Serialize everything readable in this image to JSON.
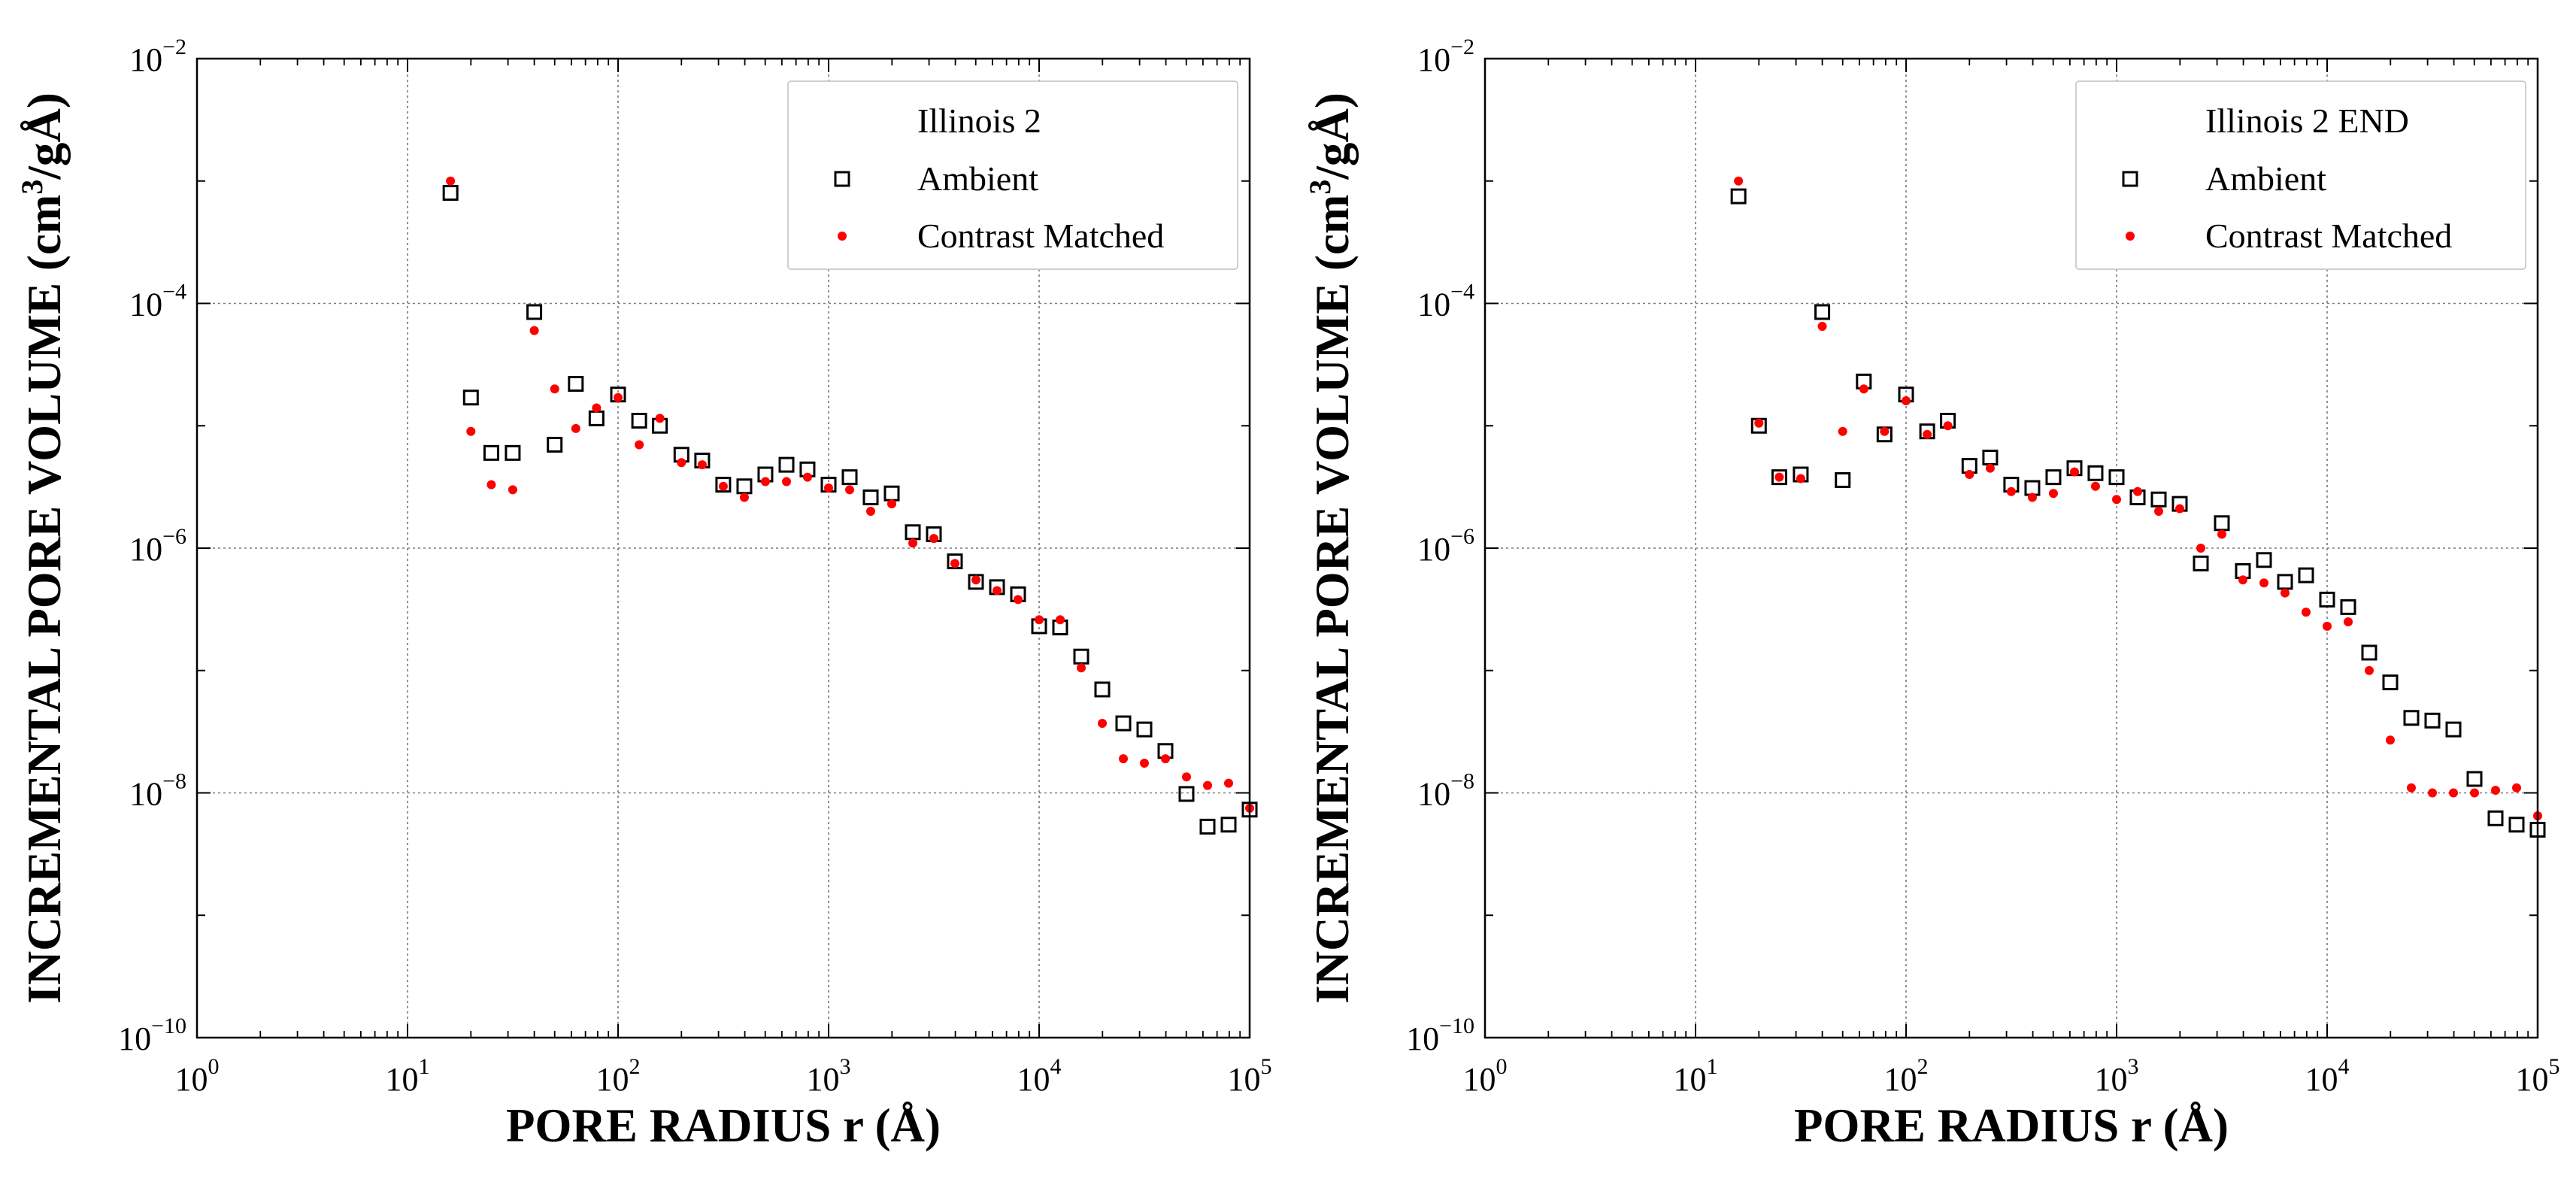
{
  "chart_data": [
    {
      "type": "scatter",
      "title": "Illinois 2",
      "xlabel": "PORE RADIUS r (Å)",
      "ylabel": "INCREMENTAL PORE VOLUME (cm³/gÅ)",
      "ylabel_parts": {
        "main": "INCREMENTAL PORE VOLUME (cm",
        "sup": "3",
        "tail": "/gÅ)"
      },
      "x_scale": "log",
      "y_scale": "log",
      "xlim": [
        1,
        100000
      ],
      "ylim": [
        1e-10,
        0.01
      ],
      "grid": true,
      "legend_position": "top-right",
      "x_ticks": [
        {
          "base": "10",
          "exp": "0"
        },
        {
          "base": "10",
          "exp": "1"
        },
        {
          "base": "10",
          "exp": "2"
        },
        {
          "base": "10",
          "exp": "3"
        },
        {
          "base": "10",
          "exp": "4"
        },
        {
          "base": "10",
          "exp": "5"
        }
      ],
      "y_ticks": [
        {
          "base": "10",
          "exp": "−10"
        },
        {
          "base": "10",
          "exp": "−8"
        },
        {
          "base": "10",
          "exp": "−6"
        },
        {
          "base": "10",
          "exp": "−4"
        },
        {
          "base": "10",
          "exp": "−2"
        }
      ],
      "series": [
        {
          "name": "Ambient",
          "marker": "open-square",
          "color": "#000000",
          "x": [
            16,
            20,
            25,
            31.6,
            40,
            50,
            63,
            79,
            100,
            126,
            158,
            200,
            251,
            316,
            398,
            501,
            631,
            794,
            1000,
            1259,
            1585,
            1995,
            2512,
            3162,
            3981,
            5012,
            6310,
            7943,
            10000,
            12589,
            15849,
            19953,
            25119,
            31623,
            39811,
            50119,
            63096,
            79433,
            100000
          ],
          "y": [
            0.0008,
            1.7e-05,
            6e-06,
            6e-06,
            8.5e-05,
            7e-06,
            2.2e-05,
            1.15e-05,
            1.8e-05,
            1.1e-05,
            1e-05,
            5.8e-06,
            5.2e-06,
            3.3e-06,
            3.2e-06,
            4e-06,
            4.8e-06,
            4.4e-06,
            3.3e-06,
            3.8e-06,
            2.6e-06,
            2.8e-06,
            1.35e-06,
            1.3e-06,
            7.8e-07,
            5.3e-07,
            4.8e-07,
            4.2e-07,
            2.3e-07,
            2.25e-07,
            1.3e-07,
            7e-08,
            3.7e-08,
            3.3e-08,
            2.2e-08,
            9.8e-09,
            5.3e-09,
            5.5e-09,
            7.3e-09
          ]
        },
        {
          "name": "Contrast Matched",
          "marker": "red-dot",
          "color": "#ff0000",
          "x": [
            16,
            20,
            25,
            31.6,
            40,
            50,
            63,
            79,
            100,
            126,
            158,
            200,
            251,
            316,
            398,
            501,
            631,
            794,
            1000,
            1259,
            1585,
            1995,
            2512,
            3162,
            3981,
            5012,
            6310,
            7943,
            10000,
            12589,
            15849,
            19953,
            25119,
            31623,
            39811,
            50119,
            63096,
            79433,
            100000
          ],
          "y": [
            0.001,
            9e-06,
            3.3e-06,
            3e-06,
            6e-05,
            2e-05,
            9.5e-06,
            1.4e-05,
            1.7e-05,
            7e-06,
            1.15e-05,
            5e-06,
            4.8e-06,
            3.2e-06,
            2.6e-06,
            3.5e-06,
            3.5e-06,
            3.8e-06,
            3.1e-06,
            3e-06,
            2e-06,
            2.3e-06,
            1.1e-06,
            1.2e-06,
            7.5e-07,
            5.5e-07,
            4.5e-07,
            3.8e-07,
            2.6e-07,
            2.6e-07,
            1.05e-07,
            3.7e-08,
            1.9e-08,
            1.75e-08,
            1.9e-08,
            1.35e-08,
            1.15e-08,
            1.2e-08,
            7.5e-09
          ]
        }
      ]
    },
    {
      "type": "scatter",
      "title": "Illinois 2 END",
      "xlabel": "PORE RADIUS r (Å)",
      "ylabel": "INCREMENTAL PORE VOLUME (cm³/gÅ)",
      "ylabel_parts": {
        "main": "INCREMENTAL PORE VOLUME (cm",
        "sup": "3",
        "tail": "/gÅ)"
      },
      "x_scale": "log",
      "y_scale": "log",
      "xlim": [
        1,
        100000
      ],
      "ylim": [
        1e-10,
        0.01
      ],
      "grid": true,
      "legend_position": "top-right",
      "x_ticks": [
        {
          "base": "10",
          "exp": "0"
        },
        {
          "base": "10",
          "exp": "1"
        },
        {
          "base": "10",
          "exp": "2"
        },
        {
          "base": "10",
          "exp": "3"
        },
        {
          "base": "10",
          "exp": "4"
        },
        {
          "base": "10",
          "exp": "5"
        }
      ],
      "y_ticks": [
        {
          "base": "10",
          "exp": "−10"
        },
        {
          "base": "10",
          "exp": "−8"
        },
        {
          "base": "10",
          "exp": "−6"
        },
        {
          "base": "10",
          "exp": "−4"
        },
        {
          "base": "10",
          "exp": "−2"
        }
      ],
      "series": [
        {
          "name": "Ambient",
          "marker": "open-square",
          "color": "#000000",
          "x": [
            16,
            20,
            25,
            31.6,
            40,
            50,
            63,
            79,
            100,
            126,
            158,
            200,
            251,
            316,
            398,
            501,
            631,
            794,
            1000,
            1259,
            1585,
            1995,
            2512,
            3162,
            3981,
            5012,
            6310,
            7943,
            10000,
            12589,
            15849,
            19953,
            25119,
            31623,
            39811,
            50119,
            63096,
            79433,
            100000
          ],
          "y": [
            0.00075,
            1e-05,
            3.8e-06,
            4e-06,
            8.5e-05,
            3.6e-06,
            2.3e-05,
            8.5e-06,
            1.8e-05,
            9e-06,
            1.1e-05,
            4.7e-06,
            5.5e-06,
            3.3e-06,
            3.1e-06,
            3.8e-06,
            4.5e-06,
            4.1e-06,
            3.8e-06,
            2.6e-06,
            2.5e-06,
            2.3e-06,
            7.5e-07,
            1.6e-06,
            6.5e-07,
            8e-07,
            5.3e-07,
            6e-07,
            3.8e-07,
            3.3e-07,
            1.4e-07,
            8e-08,
            4.1e-08,
            3.9e-08,
            3.3e-08,
            1.3e-08,
            6.2e-09,
            5.5e-09,
            5e-09
          ]
        },
        {
          "name": "Contrast Matched",
          "marker": "red-dot",
          "color": "#ff0000",
          "x": [
            16,
            20,
            25,
            31.6,
            40,
            50,
            63,
            79,
            100,
            126,
            158,
            200,
            251,
            316,
            398,
            501,
            631,
            794,
            1000,
            1259,
            1585,
            1995,
            2512,
            3162,
            3981,
            5012,
            6310,
            7943,
            10000,
            12589,
            15849,
            19953,
            25119,
            31623,
            39811,
            50119,
            63096,
            79433,
            100000
          ],
          "y": [
            0.001,
            1.05e-05,
            3.8e-06,
            3.7e-06,
            6.5e-05,
            9e-06,
            2e-05,
            9e-06,
            1.6e-05,
            8.5e-06,
            1e-05,
            4e-06,
            4.5e-06,
            2.9e-06,
            2.6e-06,
            2.8e-06,
            4.2e-06,
            3.2e-06,
            2.5e-06,
            2.9e-06,
            2e-06,
            2.1e-06,
            1e-06,
            1.3e-06,
            5.5e-07,
            5.2e-07,
            4.3e-07,
            3e-07,
            2.3e-07,
            2.5e-07,
            1e-07,
            2.7e-08,
            1.1e-08,
            1e-08,
            1e-08,
            1e-08,
            1.05e-08,
            1.1e-08,
            6.5e-09
          ]
        }
      ]
    }
  ]
}
